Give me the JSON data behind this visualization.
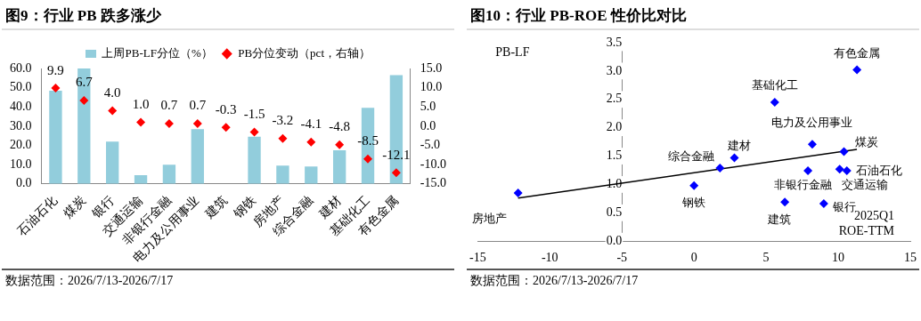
{
  "chart_data": [
    {
      "type": "bar",
      "title": "图9：行业 PB 跌多涨少",
      "categories": [
        "石油石化",
        "煤炭",
        "银行",
        "交通运输",
        "非银行金融",
        "电力及公用事业",
        "建筑",
        "钢铁",
        "房地产",
        "综合金融",
        "建材",
        "基础化工",
        "有色金属"
      ],
      "series": [
        {
          "name": "上周PB-LF分位（%）",
          "color": "#92cddc",
          "values": [
            48.5,
            60,
            22,
            4.5,
            10,
            28.5,
            null,
            24.5,
            9.5,
            9,
            17.5,
            39.5,
            56.5
          ]
        },
        {
          "name": "PB分位变动（pct，右轴）",
          "type": "scatter",
          "axis": "y2",
          "marker": "diamond",
          "color": "#ff0000",
          "values": [
            9.9,
            6.7,
            4.0,
            1.0,
            0.7,
            0.7,
            -0.3,
            -1.5,
            -3.2,
            -4.1,
            -4.8,
            -8.5,
            -12.1
          ],
          "value_labels": [
            "9.9",
            "6.7",
            "4.0",
            "1.0",
            "0.7",
            "0.7",
            "-0.3",
            "-1.5",
            "-3.2",
            "-4.1",
            "-4.8",
            "-8.5",
            "-12.1"
          ]
        }
      ],
      "ylim": [
        0,
        60
      ],
      "yticks": [
        {
          "value": 0,
          "label": "0.0"
        },
        {
          "value": 10,
          "label": "10.0"
        },
        {
          "value": 20,
          "label": "20.0"
        },
        {
          "value": 30,
          "label": "30.0"
        },
        {
          "value": 40,
          "label": "40.0"
        },
        {
          "value": 50,
          "label": "50.0"
        },
        {
          "value": 60,
          "label": "60.0"
        }
      ],
      "y2lim": [
        -15,
        15
      ],
      "y2ticks": [
        {
          "value": -15,
          "label": "-15.0"
        },
        {
          "value": -10,
          "label": "-10.0"
        },
        {
          "value": -5,
          "label": "-5.0"
        },
        {
          "value": 0,
          "label": "0.0"
        },
        {
          "value": 5,
          "label": "5.0"
        },
        {
          "value": 10,
          "label": "10.0"
        },
        {
          "value": 15,
          "label": "15.0"
        }
      ],
      "legend": "top",
      "grid": false,
      "annotations": [
        "数据范围：2026/7/13-2026/7/17"
      ]
    },
    {
      "type": "scatter",
      "title": "图10：行业 PB-ROE 性价比对比",
      "xlabel": "2025Q1 ROE-TTM",
      "ylabel": "PB-LF",
      "series": [
        {
          "color": "#0000ff",
          "marker": "diamond",
          "x": [
            -12.2,
            0,
            1.8,
            2.8,
            5.6,
            6.3,
            7.9,
            8.2,
            9,
            10.1,
            10.4,
            10.6,
            11.3
          ],
          "values": [
            0.85,
            0.98,
            1.29,
            1.47,
            2.45,
            0.69,
            1.24,
            1.71,
            0.66,
            1.27,
            1.58,
            1.24,
            3.02
          ]
        },
        {
          "type": "line",
          "color": "#000000",
          "marker": "none",
          "line_style": "solid",
          "x": [
            -12.2,
            11.3
          ],
          "values": [
            0.76,
            1.62
          ]
        }
      ],
      "xlim": [
        -15,
        15
      ],
      "xticks": [
        -15,
        -10,
        -5,
        0,
        5,
        10,
        15
      ],
      "ylim": [
        0,
        3.5
      ],
      "yticks": [
        {
          "value": 0,
          "label": "0.0"
        },
        {
          "value": 0.5,
          "label": "0.5"
        },
        {
          "value": 1,
          "label": "1.0"
        },
        {
          "value": 1.5,
          "label": "1.5"
        },
        {
          "value": 2,
          "label": "2.0"
        },
        {
          "value": 2.5,
          "label": "2.5"
        },
        {
          "value": 3,
          "label": "3.0"
        },
        {
          "value": 3.5,
          "label": "3.5"
        }
      ],
      "grid": false,
      "annotations": [
        {
          "text": "房地产",
          "x": -12.2,
          "y": 0.85
        },
        {
          "text": "钢铁",
          "x": 0,
          "y": 0.98
        },
        {
          "text": "综合金融",
          "x": 1.8,
          "y": 1.29
        },
        {
          "text": "建材",
          "x": 2.8,
          "y": 1.47
        },
        {
          "text": "基础化工",
          "x": 5.6,
          "y": 2.45
        },
        {
          "text": "建筑",
          "x": 6.3,
          "y": 0.69
        },
        {
          "text": "非银行金融",
          "x": 7.9,
          "y": 1.24
        },
        {
          "text": "电力及公用事业",
          "x": 8.2,
          "y": 1.71
        },
        {
          "text": "银行",
          "x": 9,
          "y": 0.66
        },
        {
          "text": "交通运输",
          "x": 10.1,
          "y": 1.27
        },
        {
          "text": "煤炭",
          "x": 10.4,
          "y": 1.58
        },
        {
          "text": "石油石化",
          "x": 10.6,
          "y": 1.24
        },
        {
          "text": "有色金属",
          "x": 11.3,
          "y": 3.02
        },
        "数据范围：2026/7/13-2026/7/17"
      ]
    }
  ]
}
